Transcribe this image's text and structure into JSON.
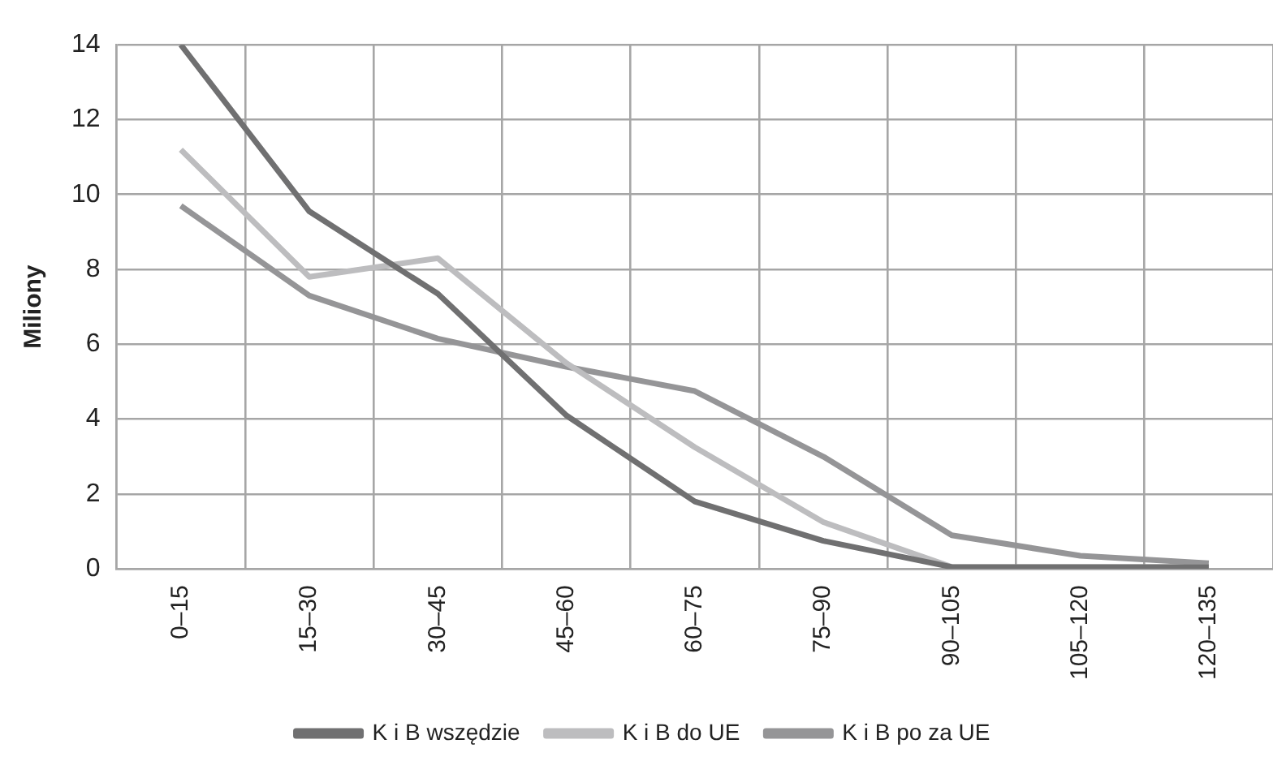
{
  "chart_data": {
    "type": "line",
    "ylabel": "Miliony",
    "categories": [
      "0–15",
      "15–30",
      "30–45",
      "45–60",
      "60–75",
      "75–90",
      "90–105",
      "105–120",
      "120–135"
    ],
    "series": [
      {
        "name": "K i B wszędzie",
        "color": "#707071",
        "values": [
          14,
          9.55,
          7.35,
          4.1,
          1.8,
          0.75,
          0.05,
          0.05,
          0.05
        ]
      },
      {
        "name": "K i B do UE",
        "color": "#bdbdbf",
        "values": [
          11.2,
          7.8,
          8.3,
          5.5,
          3.25,
          1.25,
          0.05,
          0.05,
          0.05
        ]
      },
      {
        "name": "K i B po za UE",
        "color": "#959597",
        "values": [
          9.7,
          7.3,
          6.15,
          5.4,
          4.75,
          3.0,
          0.9,
          0.35,
          0.15
        ]
      }
    ],
    "ylim": [
      0,
      14
    ],
    "yticks": [
      0,
      2,
      4,
      6,
      8,
      10,
      12,
      14
    ],
    "grid": true,
    "legend": "bottom",
    "marker": "none",
    "line_style": "solid"
  }
}
